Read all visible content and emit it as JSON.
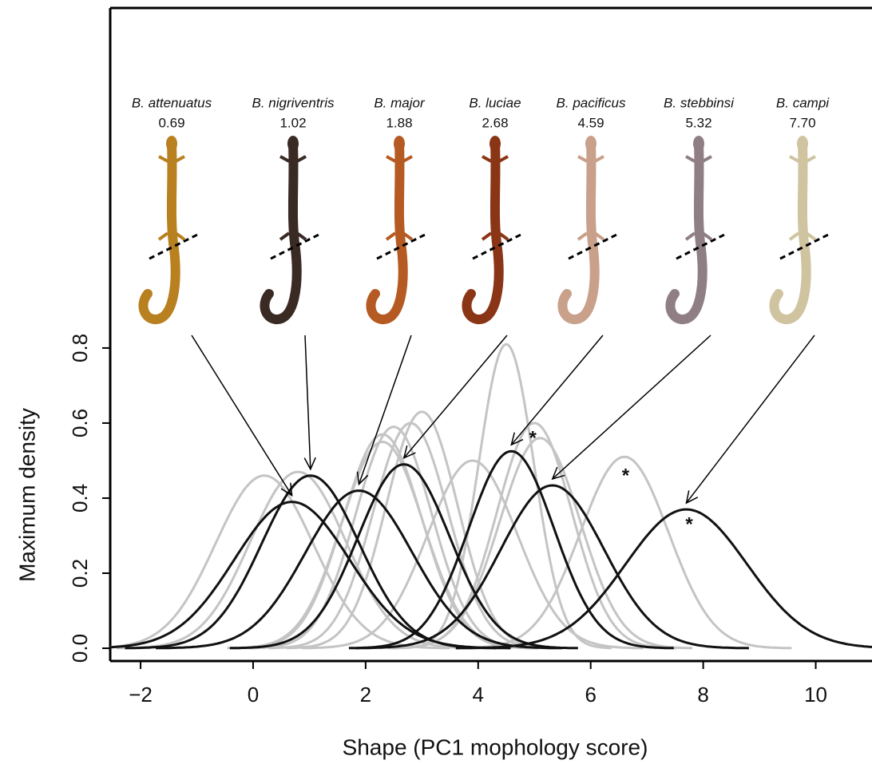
{
  "chart_data": {
    "type": "density",
    "x_label": "Shape (PC1 mophology score)",
    "y_label": "Maximum density",
    "xlim": [
      -2.54,
      11.0
    ],
    "ylim": [
      -0.034,
      1.706
    ],
    "xticks": [
      {
        "value": -2,
        "label": "−2"
      },
      0,
      2,
      4,
      6,
      8,
      10
    ],
    "yticks": [
      {
        "value": 0,
        "label": "0.0"
      },
      0.2,
      0.4,
      0.6,
      0.8
    ],
    "series": [
      {
        "color": "#c4c4c4",
        "mean": 0.2,
        "peak": 0.46
      },
      {
        "color": "#c4c4c4",
        "mean": 0.8,
        "peak": 0.47
      },
      {
        "color": "#c4c4c4",
        "mean": 2.3,
        "peak": 0.55
      },
      {
        "color": "#c4c4c4",
        "mean": 2.3,
        "peak": 0.57
      },
      {
        "color": "#c4c4c4",
        "mean": 2.5,
        "peak": 0.59
      },
      {
        "color": "#c4c4c4",
        "mean": 2.8,
        "peak": 0.6
      },
      {
        "color": "#c4c4c4",
        "mean": 3.0,
        "peak": 0.63
      },
      {
        "color": "#c4c4c4",
        "mean": 3.9,
        "peak": 0.5
      },
      {
        "color": "#c4c4c4",
        "mean": 4.5,
        "peak": 0.81
      },
      {
        "color": "#c4c4c4",
        "mean": 5.0,
        "peak": 0.6
      },
      {
        "color": "#c4c4c4",
        "mean": 5.1,
        "peak": 0.56
      },
      {
        "color": "#c4c4c4",
        "mean": 6.6,
        "peak": 0.51
      },
      {
        "color": "#111111",
        "mean": 0.69,
        "peak": 0.39
      },
      {
        "color": "#111111",
        "mean": 1.02,
        "peak": 0.46
      },
      {
        "color": "#111111",
        "mean": 1.88,
        "peak": 0.42
      },
      {
        "color": "#111111",
        "mean": 2.68,
        "peak": 0.49
      },
      {
        "color": "#111111",
        "mean": 4.59,
        "peak": 0.525
      },
      {
        "color": "#111111",
        "mean": 5.32,
        "peak": 0.434
      },
      {
        "color": "#111111",
        "mean": 7.7,
        "peak": 0.37
      }
    ],
    "species": {
      "names": [
        "B. attenuatus",
        "B. nigriventris",
        "B. major",
        "B. luciae",
        "B. pacificus",
        "B. stebbinsi",
        "B. campi"
      ],
      "values": [
        0.69,
        1.02,
        1.88,
        2.68,
        4.59,
        5.32,
        7.7
      ],
      "value_labels": [
        "0.69",
        "1.02",
        "1.88",
        "2.68",
        "4.59",
        "5.32",
        "7.70"
      ],
      "peaks": [
        0.39,
        0.46,
        0.42,
        0.49,
        0.525,
        0.434,
        0.37
      ]
    },
    "annotations": [
      {
        "text": "*",
        "x": 4.97,
        "y": 0.57
      },
      {
        "text": "*",
        "x": 6.62,
        "y": 0.47
      },
      {
        "text": "*",
        "x": 7.75,
        "y": 0.34
      }
    ]
  }
}
